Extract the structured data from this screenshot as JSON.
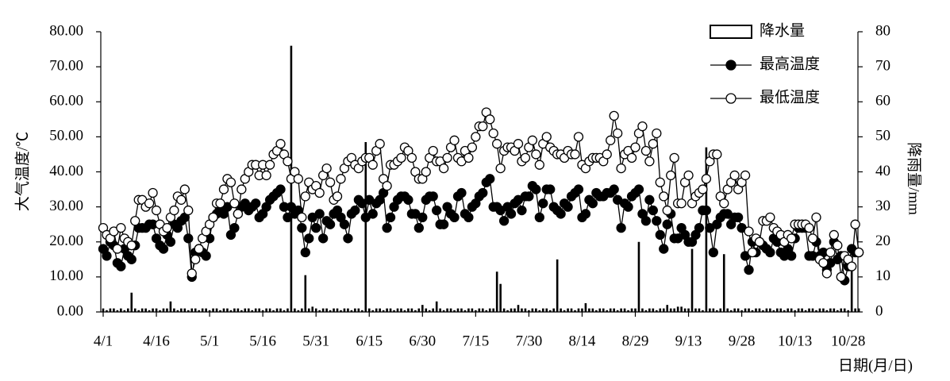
{
  "chart_data": {
    "type": "combo",
    "x_label": "日期(月/日)",
    "y_label": "大气温度/℃",
    "y2_label": "降雨量/mm",
    "categories": [
      "4/1",
      null,
      null,
      null,
      null,
      null,
      null,
      null,
      null,
      null,
      null,
      null,
      null,
      null,
      null,
      "4/16",
      null,
      null,
      null,
      null,
      null,
      null,
      null,
      null,
      null,
      null,
      null,
      null,
      null,
      null,
      "5/1",
      null,
      null,
      null,
      null,
      null,
      null,
      null,
      null,
      null,
      null,
      null,
      null,
      null,
      null,
      "5/16",
      null,
      null,
      null,
      null,
      null,
      null,
      null,
      null,
      null,
      null,
      null,
      null,
      null,
      null,
      "5/31",
      null,
      null,
      null,
      null,
      null,
      null,
      null,
      null,
      null,
      null,
      null,
      null,
      null,
      null,
      "6/15",
      null,
      null,
      null,
      null,
      null,
      null,
      null,
      null,
      null,
      null,
      null,
      null,
      null,
      null,
      "6/30",
      null,
      null,
      null,
      null,
      null,
      null,
      null,
      null,
      null,
      null,
      null,
      null,
      null,
      null,
      "7/15",
      null,
      null,
      null,
      null,
      null,
      null,
      null,
      null,
      null,
      null,
      null,
      null,
      null,
      null,
      "7/30",
      null,
      null,
      null,
      null,
      null,
      null,
      null,
      null,
      null,
      null,
      null,
      null,
      null,
      null,
      "8/14",
      null,
      null,
      null,
      null,
      null,
      null,
      null,
      null,
      null,
      null,
      null,
      null,
      null,
      null,
      "8/29",
      null,
      null,
      null,
      null,
      null,
      null,
      null,
      null,
      null,
      null,
      null,
      null,
      null,
      null,
      "9/13",
      null,
      null,
      null,
      null,
      null,
      null,
      null,
      null,
      null,
      null,
      null,
      null,
      null,
      null,
      "9/28",
      null,
      null,
      null,
      null,
      null,
      null,
      null,
      null,
      null,
      null,
      null,
      null,
      null,
      null,
      "10/13",
      null,
      null,
      null,
      null,
      null,
      null,
      null,
      null,
      null,
      null,
      null,
      null,
      null,
      null,
      "10/28",
      null,
      null,
      null
    ],
    "ylim": [
      0,
      80
    ],
    "yticks": [
      {
        "value": 0,
        "label": "0.00"
      },
      {
        "value": 10,
        "label": "10.00"
      },
      {
        "value": 20,
        "label": "20.00"
      },
      {
        "value": 30,
        "label": "30.00"
      },
      {
        "value": 40,
        "label": "40.00"
      },
      {
        "value": 50,
        "label": "50.00"
      },
      {
        "value": 60,
        "label": "60.00"
      },
      {
        "value": 70,
        "label": "70.00"
      },
      {
        "value": 80,
        "label": "80.00"
      }
    ],
    "y2lim": [
      0,
      80
    ],
    "y2ticks": [
      0,
      10,
      20,
      30,
      40,
      50,
      60,
      70,
      80
    ],
    "legend": "upper right",
    "series": [
      {
        "name": "降水量",
        "type": "bar",
        "axis": "y2",
        "color": "#000000",
        "values": [
          1,
          0.5,
          1,
          1,
          0.5,
          1,
          0.5,
          1,
          5.5,
          1,
          0.5,
          1,
          1,
          0.5,
          1,
          1,
          0.5,
          1,
          1,
          3,
          1,
          0.5,
          1,
          1,
          0.5,
          1,
          1,
          0.5,
          1,
          1,
          0.5,
          1,
          1,
          0.5,
          1,
          1,
          0.5,
          1,
          1,
          0.5,
          1,
          1,
          0.5,
          1,
          1,
          0.5,
          1,
          1,
          0.5,
          1,
          1,
          0.5,
          1,
          76,
          1,
          0.5,
          1,
          10.5,
          1,
          1.5,
          1,
          0.5,
          1,
          1,
          0.5,
          1,
          1,
          0.5,
          1,
          1,
          0.5,
          1,
          1,
          0.5,
          48.5,
          1,
          0.5,
          1,
          1,
          0.5,
          1,
          1,
          0.5,
          1,
          1,
          0.5,
          1,
          1,
          0.5,
          1,
          2,
          1,
          0.5,
          1,
          3,
          1,
          0.5,
          1,
          1,
          0.5,
          1,
          1,
          0.5,
          1,
          1,
          0.5,
          1,
          1,
          0.5,
          1,
          1,
          11.5,
          8,
          1,
          0.5,
          1,
          1,
          2,
          1,
          1,
          0.5,
          1,
          1,
          0.5,
          1,
          1,
          0.5,
          1,
          15,
          1,
          0.5,
          1,
          1,
          0.5,
          1,
          1,
          2.5,
          1,
          1,
          0.5,
          1,
          1,
          0.5,
          1,
          1,
          0.5,
          1,
          1,
          0.5,
          1,
          1,
          20,
          1,
          0.5,
          1,
          1,
          0.5,
          1,
          1,
          2,
          1,
          1,
          1.5,
          1.5,
          1,
          1,
          18,
          1,
          1,
          0.5,
          47,
          1,
          1,
          0.5,
          1,
          16.5,
          1,
          0.5,
          1,
          1,
          0.5,
          1,
          1,
          0.5,
          1,
          1,
          0.5,
          1,
          1,
          0.5,
          1,
          1,
          0.5,
          1,
          1,
          0.5,
          1,
          1,
          0.5,
          1,
          1,
          0.5,
          1,
          1,
          0.5,
          1,
          1,
          0.5,
          1,
          1,
          0.5,
          12,
          1,
          1
        ]
      },
      {
        "name": "最高温度",
        "type": "line",
        "marker": "filled",
        "color": "#000000",
        "values": [
          18,
          16,
          20,
          19,
          14,
          13,
          18,
          16,
          15,
          19,
          24,
          24,
          24,
          25,
          25,
          21,
          19,
          18,
          22,
          20,
          25,
          24,
          26,
          27,
          21,
          10,
          17,
          18,
          17,
          16,
          21,
          27,
          28,
          29,
          28,
          30,
          22,
          24,
          28,
          30,
          31,
          29,
          30,
          31,
          27,
          28,
          30,
          32,
          33,
          34,
          35,
          30,
          27,
          30,
          28,
          29,
          24,
          17,
          21,
          27,
          24,
          28,
          21,
          26,
          25,
          28,
          29,
          27,
          25,
          21,
          28,
          29,
          32,
          31,
          27,
          32,
          28,
          31,
          32,
          34,
          24,
          27,
          30,
          32,
          33,
          33,
          32,
          28,
          28,
          24,
          27,
          32,
          33,
          33,
          29,
          25,
          25,
          30,
          28,
          27,
          33,
          34,
          28,
          27,
          30,
          31,
          33,
          34,
          37,
          38,
          30,
          30,
          29,
          26,
          30,
          28,
          31,
          32,
          29,
          33,
          33,
          36,
          35,
          27,
          31,
          35,
          35,
          30,
          29,
          28,
          31,
          30,
          33,
          34,
          35,
          27,
          28,
          32,
          31,
          34,
          33,
          33,
          34,
          34,
          35,
          32,
          24,
          31,
          30,
          33,
          34,
          35,
          28,
          26,
          32,
          29,
          26,
          22,
          18,
          25,
          28,
          21,
          21,
          24,
          22,
          20,
          20,
          22,
          24,
          29,
          29,
          24,
          17,
          25,
          27,
          28,
          28,
          25,
          27,
          27,
          24,
          16,
          12,
          20,
          17,
          20,
          19,
          18,
          17,
          21,
          20,
          17,
          16,
          18,
          16,
          21,
          24,
          24,
          24,
          16,
          16,
          20,
          16,
          17,
          12,
          14,
          20,
          15,
          16,
          9,
          13,
          18,
          17,
          17
        ]
      },
      {
        "name": "最低温度",
        "type": "line",
        "marker": "open",
        "color": "#000000",
        "values": [
          24,
          22,
          21,
          23,
          18,
          24,
          21,
          20,
          19,
          26,
          32,
          32,
          30,
          31,
          34,
          29,
          25,
          23,
          24,
          27,
          29,
          33,
          32,
          35,
          29,
          11,
          15,
          18,
          21,
          23,
          25,
          27,
          31,
          31,
          35,
          38,
          37,
          31,
          28,
          35,
          38,
          40,
          42,
          42,
          39,
          42,
          39,
          42,
          45,
          46,
          48,
          45,
          43,
          38,
          40,
          38,
          27,
          33,
          37,
          35,
          36,
          34,
          39,
          41,
          37,
          32,
          33,
          38,
          41,
          43,
          44,
          42,
          41,
          43,
          44,
          44,
          42,
          46,
          48,
          38,
          36,
          42,
          42,
          43,
          44,
          47,
          46,
          44,
          40,
          38,
          38,
          40,
          44,
          46,
          43,
          43,
          41,
          44,
          47,
          49,
          44,
          43,
          46,
          44,
          47,
          50,
          53,
          53,
          57,
          55,
          51,
          48,
          41,
          46,
          47,
          47,
          46,
          48,
          43,
          44,
          47,
          49,
          45,
          42,
          48,
          50,
          47,
          46,
          45,
          45,
          44,
          46,
          45,
          45,
          50,
          42,
          41,
          43,
          44,
          44,
          44,
          43,
          45,
          49,
          56,
          51,
          41,
          45,
          46,
          44,
          47,
          51,
          53,
          46,
          43,
          48,
          51,
          37,
          33,
          29,
          39,
          44,
          31,
          31,
          37,
          39,
          31,
          33,
          34,
          35,
          38,
          43,
          45,
          45,
          33,
          31,
          35,
          37,
          39,
          35,
          37,
          39,
          23,
          17,
          21,
          20,
          26,
          26,
          27,
          24,
          23,
          22,
          20,
          22,
          21,
          25,
          25,
          25,
          25,
          24,
          21,
          27,
          15,
          14,
          11,
          17,
          22,
          19,
          10,
          16,
          15,
          13,
          25,
          17
        ]
      }
    ]
  }
}
